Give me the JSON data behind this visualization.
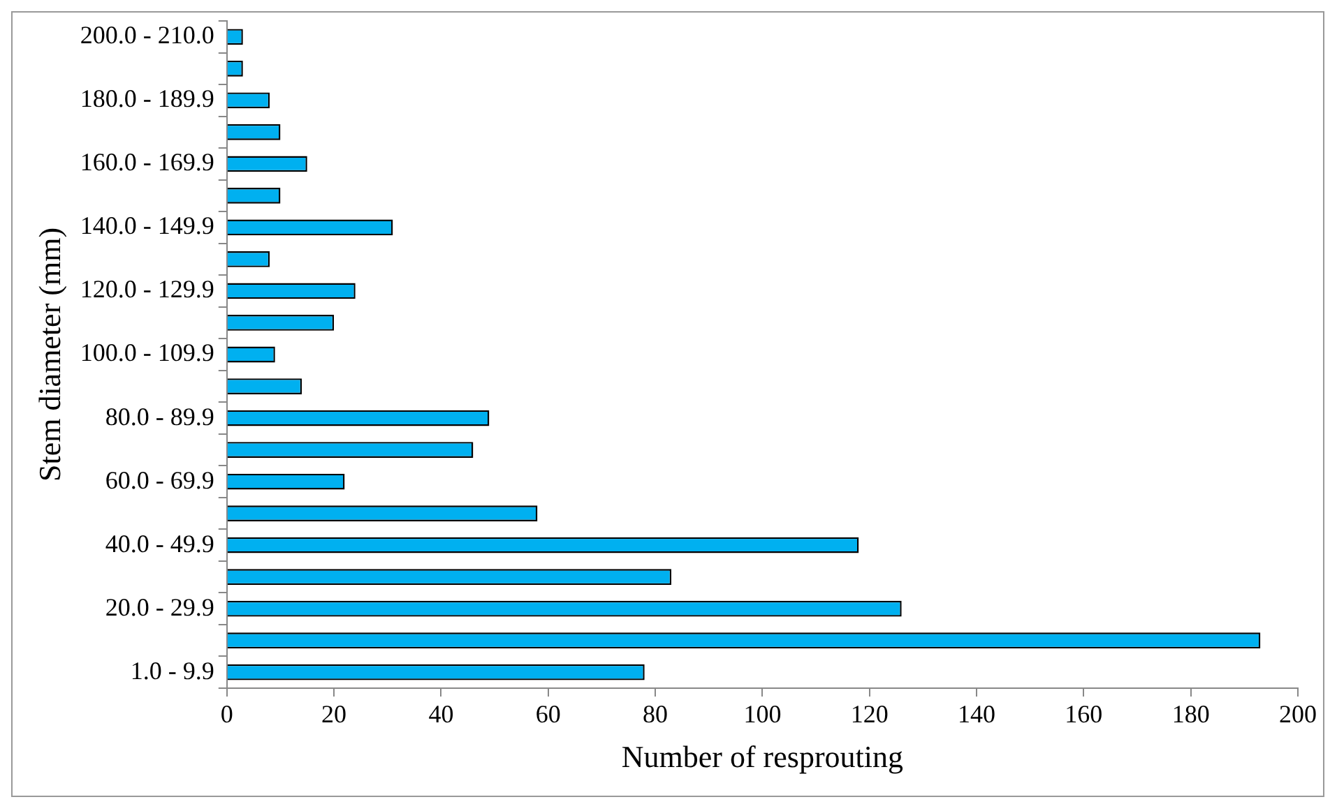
{
  "chart_data": {
    "type": "bar",
    "orientation": "horizontal",
    "xlabel": "Number of resprouting",
    "ylabel": "Stem diameter (mm)",
    "categories": [
      "200.0 - 210.0",
      null,
      "180.0 - 189.9",
      null,
      "160.0 - 169.9",
      null,
      "140.0 - 149.9",
      null,
      "120.0 - 129.9",
      null,
      "100.0 - 109.9",
      null,
      "80.0 - 89.9",
      null,
      "60.0 - 69.9",
      null,
      "40.0 - 49.9",
      null,
      "20.0 - 29.9",
      null,
      "1.0 - 9.9"
    ],
    "values": [
      3,
      3,
      8,
      10,
      15,
      10,
      31,
      8,
      24,
      20,
      9,
      14,
      49,
      46,
      22,
      58,
      118,
      83,
      126,
      193,
      78
    ],
    "color": "#00b0f0",
    "xlim": [
      0,
      200
    ],
    "xticks": [
      0,
      20,
      40,
      60,
      80,
      100,
      120,
      140,
      160,
      180,
      200
    ],
    "grid": false,
    "legend": false
  }
}
